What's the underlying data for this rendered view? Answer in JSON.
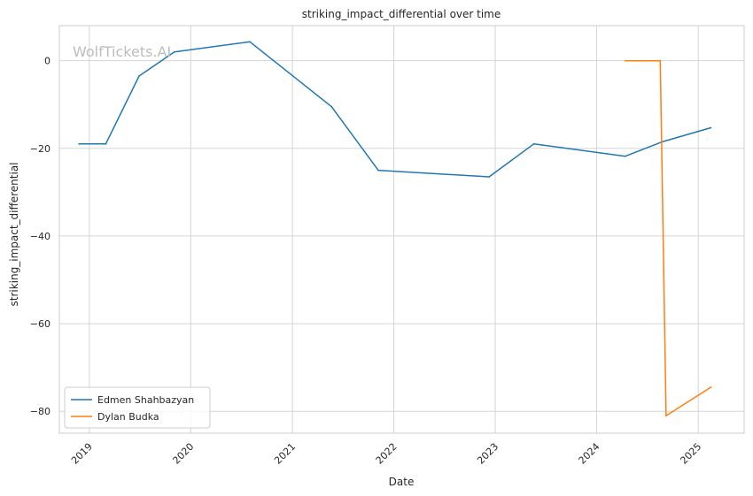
{
  "chart_data": {
    "type": "line",
    "title": "striking_impact_differential over time",
    "xlabel": "Date",
    "ylabel": "striking_impact_differential",
    "watermark": "WolfTickets.AI",
    "x_tick_labels": [
      "2019",
      "2020",
      "2021",
      "2022",
      "2023",
      "2024",
      "2025"
    ],
    "y_tick_labels": [
      "0",
      "−20",
      "−40",
      "−60",
      "−80"
    ],
    "xlim": [
      "2018-09-15",
      "2025-06-15"
    ],
    "ylim": [
      -85,
      8
    ],
    "grid": true,
    "legend_position": "lower-left",
    "series": [
      {
        "name": "Edmen Shahbazyan",
        "color": "#1f77b4",
        "x": [
          "2018-11-25",
          "2019-03-01",
          "2019-06-29",
          "2019-11-03",
          "2020-08-01",
          "2021-05-22",
          "2021-11-06",
          "2022-12-10",
          "2023-05-20",
          "2024-04-13",
          "2024-08-24",
          "2025-02-15"
        ],
        "y": [
          -19,
          -19,
          -3.5,
          2,
          4.3,
          -10.5,
          -25,
          -26.5,
          -19,
          -21.8,
          -18.5,
          -15.3
        ]
      },
      {
        "name": "Dylan Budka",
        "color": "#ff7f0e",
        "x": [
          "2024-04-13",
          "2024-08-17",
          "2024-09-07",
          "2025-02-15"
        ],
        "y": [
          0,
          0,
          -81,
          -74.5
        ]
      }
    ]
  }
}
